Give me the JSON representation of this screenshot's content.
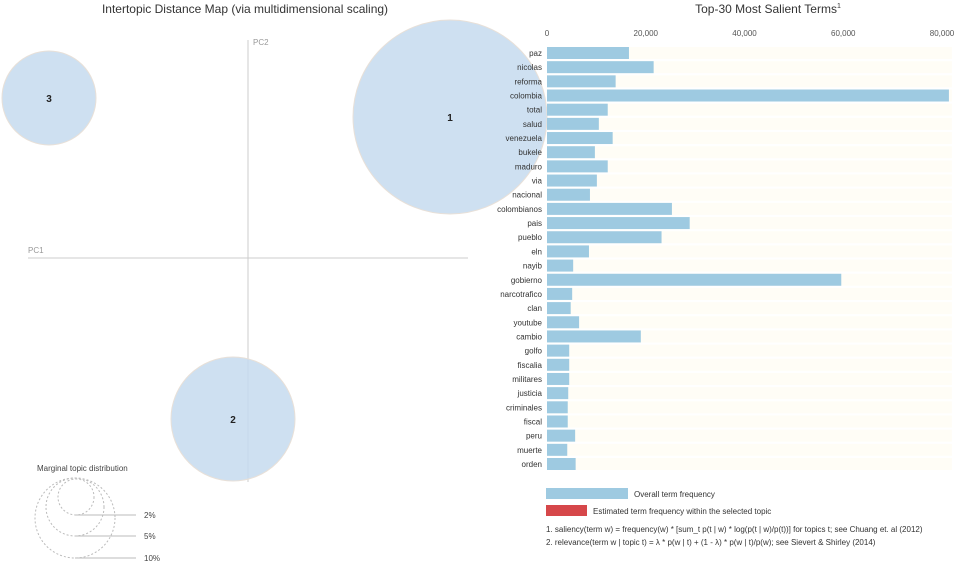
{
  "chart_data": [
    {
      "type": "scatter",
      "title": "Intertopic Distance Map (via multidimensional scaling)",
      "xlabel": "PC1",
      "ylabel": "PC2",
      "topics": [
        {
          "label": "1",
          "size_rank": 1
        },
        {
          "label": "2",
          "size_rank": 2
        },
        {
          "label": "3",
          "size_rank": 3
        }
      ],
      "bubble_color": "#c6dbef",
      "size_legend": {
        "title": "Marginal topic distribution",
        "entries": [
          "2%",
          "5%",
          "10%"
        ]
      }
    },
    {
      "type": "bar",
      "title": "Top-30 Most Salient Terms",
      "title_superscript": "1",
      "orientation": "horizontal",
      "xlim": [
        0,
        82000
      ],
      "xticks": [
        "0",
        "20,000",
        "40,000",
        "60,000",
        "80,000"
      ],
      "categories": [
        "paz",
        "nicolas",
        "reforma",
        "colombia",
        "total",
        "salud",
        "venezuela",
        "bukele",
        "maduro",
        "via",
        "nacional",
        "colombianos",
        "pais",
        "pueblo",
        "eln",
        "nayib",
        "gobierno",
        "narcotrafico",
        "clan",
        "youtube",
        "cambio",
        "golfo",
        "fiscalia",
        "militares",
        "justicia",
        "criminales",
        "fiscal",
        "peru",
        "muerte",
        "orden"
      ],
      "series": [
        {
          "name": "Overall term frequency",
          "color": "#9ecae1",
          "values": [
            16600,
            21600,
            13900,
            81400,
            12300,
            10500,
            13300,
            9700,
            12300,
            10100,
            8700,
            25300,
            28900,
            23200,
            8500,
            5300,
            59600,
            5100,
            4800,
            6500,
            19000,
            4500,
            4500,
            4500,
            4300,
            4200,
            4200,
            5700,
            4100,
            5800
          ]
        }
      ],
      "legend": [
        {
          "label": "Overall term frequency",
          "color": "#9ecae1"
        },
        {
          "label": "Estimated term frequency within the selected topic",
          "color": "#d6474a"
        }
      ],
      "footnotes": [
        "1. saliency(term w) = frequency(w) * [sum_t p(t | w) * log(p(t | w)/p(t))] for topics t; see Chuang et. al (2012)",
        "2. relevance(term w | topic t) = λ * p(w | t) + (1 - λ) * p(w | t)/p(w); see Sievert & Shirley (2014)"
      ]
    }
  ]
}
